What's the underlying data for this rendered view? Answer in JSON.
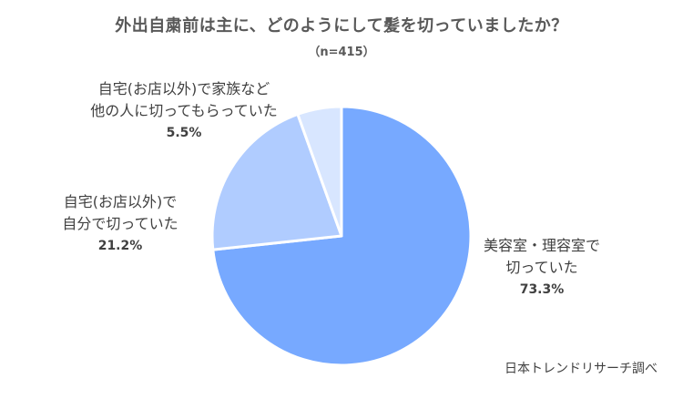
{
  "chart_data": {
    "type": "pie",
    "title": "外出自粛前は主に、どのようにして髪を切っていましたか？",
    "subtitle": "（n=415）",
    "slices": [
      {
        "label_lines": [
          "美容室・理容室で",
          "切っていた"
        ],
        "value": 73.3,
        "value_label": "73.3%",
        "color": "#77A9FF"
      },
      {
        "label_lines": [
          "自宅(お店以外)で",
          "自分で切っていた"
        ],
        "value": 21.2,
        "value_label": "21.2%",
        "color": "#B0CCFF"
      },
      {
        "label_lines": [
          "自宅(お店以外)で家族など",
          "他の人に切ってもらっていた"
        ],
        "value": 5.5,
        "value_label": "5.5%",
        "color": "#D8E6FF"
      }
    ],
    "start_angle_deg": 0,
    "direction": "clockwise",
    "source": "日本トレンドリサーチ調べ"
  }
}
